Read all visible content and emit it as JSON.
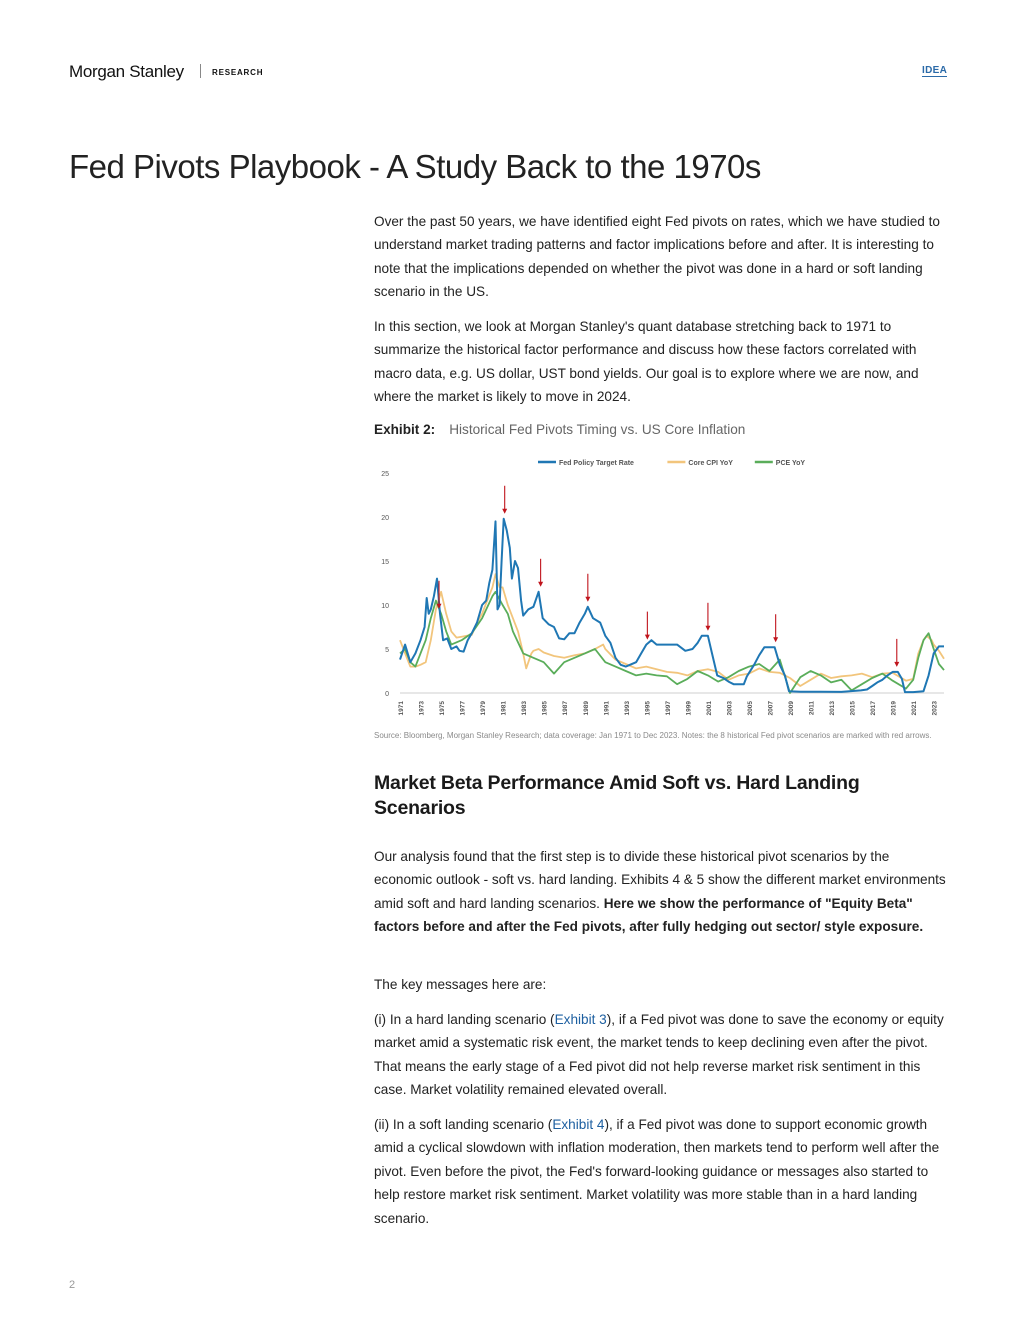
{
  "header": {
    "logo": "Morgan Stanley",
    "section": "RESEARCH",
    "badge": "IDEA"
  },
  "page_title": "Fed Pivots Playbook - A Study Back to the 1970s",
  "intro": {
    "p1": "Over the past 50 years, we have identified eight Fed pivots on rates, which we have studied to understand market trading patterns and factor implications before and after. It is interesting to note that the implications depended on whether the pivot was done in a hard or soft landing scenario in the US.",
    "p2": "In this section, we look at Morgan Stanley's quant database stretching back to 1971 to summarize the historical factor performance and discuss how these factors correlated with macro data, e.g. US dollar, UST bond yields. Our goal is to explore where we are now, and where the market is likely to move in 2024."
  },
  "exhibit": {
    "number": "Exhibit 2:",
    "title": "Historical Fed Pivots Timing vs. US Core Inflation",
    "source": "Source: Bloomberg, Morgan Stanley Research; data coverage: Jan 1971 to Dec 2023. Notes: the 8 historical Fed pivot scenarios are marked with red arrows."
  },
  "chart_data": {
    "type": "line",
    "title": "",
    "xlabel": "",
    "ylabel": "",
    "ylim": [
      0,
      25
    ],
    "xlim": [
      1971,
      2024
    ],
    "yticks": [
      "0",
      "5",
      "10",
      "15",
      "20",
      "25"
    ],
    "xticks": [
      "1971",
      "1973",
      "1975",
      "1977",
      "1979",
      "1981",
      "1983",
      "1985",
      "1987",
      "1989",
      "1991",
      "1993",
      "1995",
      "1997",
      "1999",
      "2001",
      "2003",
      "2005",
      "2007",
      "2009",
      "2011",
      "2013",
      "2015",
      "2017",
      "2019",
      "2021",
      "2023"
    ],
    "grid": false,
    "legend_position": "top-center",
    "series": [
      {
        "name": "Fed Policy Target Rate",
        "color": "#1f77b4",
        "points": [
          [
            1971,
            3.8
          ],
          [
            1971.5,
            5.5
          ],
          [
            1972,
            3.5
          ],
          [
            1972.5,
            4.5
          ],
          [
            1973,
            6.0
          ],
          [
            1973.4,
            7.5
          ],
          [
            1973.6,
            10.8
          ],
          [
            1973.8,
            9.0
          ],
          [
            1974,
            9.5
          ],
          [
            1974.3,
            11.0
          ],
          [
            1974.6,
            13.0
          ],
          [
            1974.9,
            9.0
          ],
          [
            1975.2,
            6.0
          ],
          [
            1975.6,
            6.2
          ],
          [
            1976,
            5.0
          ],
          [
            1976.5,
            5.3
          ],
          [
            1976.8,
            4.8
          ],
          [
            1977.2,
            4.7
          ],
          [
            1977.6,
            6.0
          ],
          [
            1978,
            6.8
          ],
          [
            1978.5,
            8.0
          ],
          [
            1979,
            10.0
          ],
          [
            1979.4,
            10.5
          ],
          [
            1979.7,
            12.5
          ],
          [
            1980,
            14.0
          ],
          [
            1980.3,
            19.5
          ],
          [
            1980.5,
            9.5
          ],
          [
            1980.7,
            10.0
          ],
          [
            1980.9,
            15.0
          ],
          [
            1981.1,
            19.8
          ],
          [
            1981.4,
            18.5
          ],
          [
            1981.7,
            16.5
          ],
          [
            1981.9,
            13.0
          ],
          [
            1982.2,
            15.0
          ],
          [
            1982.5,
            14.2
          ],
          [
            1982.8,
            10.5
          ],
          [
            1983,
            8.8
          ],
          [
            1983.5,
            9.5
          ],
          [
            1984,
            9.8
          ],
          [
            1984.5,
            11.5
          ],
          [
            1984.9,
            8.5
          ],
          [
            1985.5,
            7.8
          ],
          [
            1986,
            7.5
          ],
          [
            1986.5,
            6.2
          ],
          [
            1987,
            6.1
          ],
          [
            1987.5,
            6.8
          ],
          [
            1988,
            6.8
          ],
          [
            1988.5,
            8.0
          ],
          [
            1989,
            9.0
          ],
          [
            1989.3,
            9.8
          ],
          [
            1989.8,
            8.5
          ],
          [
            1990.5,
            8.0
          ],
          [
            1991,
            6.5
          ],
          [
            1991.5,
            5.7
          ],
          [
            1992,
            4.0
          ],
          [
            1992.5,
            3.2
          ],
          [
            1993,
            3.0
          ],
          [
            1994,
            3.5
          ],
          [
            1994.5,
            4.5
          ],
          [
            1995,
            5.5
          ],
          [
            1995.5,
            6.0
          ],
          [
            1996,
            5.5
          ],
          [
            1997,
            5.5
          ],
          [
            1998,
            5.5
          ],
          [
            1998.8,
            4.8
          ],
          [
            1999.5,
            5.0
          ],
          [
            2000,
            5.7
          ],
          [
            2000.4,
            6.5
          ],
          [
            2001,
            6.5
          ],
          [
            2001.4,
            4.5
          ],
          [
            2001.9,
            2.0
          ],
          [
            2002.5,
            1.7
          ],
          [
            2003,
            1.3
          ],
          [
            2003.5,
            1.0
          ],
          [
            2004.5,
            1.0
          ],
          [
            2004.8,
            1.9
          ],
          [
            2005.5,
            3.2
          ],
          [
            2006,
            4.3
          ],
          [
            2006.5,
            5.2
          ],
          [
            2007.5,
            5.2
          ],
          [
            2008,
            3.2
          ],
          [
            2008.5,
            2.0
          ],
          [
            2008.9,
            0.2
          ],
          [
            2010,
            0.15
          ],
          [
            2012,
            0.15
          ],
          [
            2014,
            0.12
          ],
          [
            2015.9,
            0.3
          ],
          [
            2016.5,
            0.4
          ],
          [
            2017,
            0.8
          ],
          [
            2017.5,
            1.2
          ],
          [
            2018,
            1.5
          ],
          [
            2018.5,
            2.0
          ],
          [
            2019,
            2.4
          ],
          [
            2019.5,
            2.4
          ],
          [
            2019.9,
            1.6
          ],
          [
            2020.2,
            0.1
          ],
          [
            2021,
            0.1
          ],
          [
            2022,
            0.2
          ],
          [
            2022.5,
            2.0
          ],
          [
            2023,
            4.5
          ],
          [
            2023.5,
            5.3
          ],
          [
            2024,
            5.3
          ]
        ]
      },
      {
        "name": "Core CPI YoY",
        "color": "#f2c57c",
        "points": [
          [
            1971,
            6.0
          ],
          [
            1971.5,
            4.5
          ],
          [
            1972,
            3.0
          ],
          [
            1972.5,
            3.0
          ],
          [
            1973,
            3.2
          ],
          [
            1973.5,
            3.5
          ],
          [
            1974,
            6.0
          ],
          [
            1974.5,
            9.5
          ],
          [
            1975,
            11.5
          ],
          [
            1975.5,
            9.0
          ],
          [
            1976,
            7.0
          ],
          [
            1976.5,
            6.3
          ],
          [
            1977,
            6.4
          ],
          [
            1977.5,
            6.5
          ],
          [
            1978,
            6.6
          ],
          [
            1978.5,
            8.0
          ],
          [
            1979,
            9.0
          ],
          [
            1979.5,
            10.5
          ],
          [
            1980,
            12.0
          ],
          [
            1980.3,
            13.5
          ],
          [
            1980.7,
            12.0
          ],
          [
            1981,
            12.0
          ],
          [
            1981.5,
            10.0
          ],
          [
            1982,
            8.5
          ],
          [
            1982.5,
            7.0
          ],
          [
            1983,
            4.5
          ],
          [
            1983.3,
            2.8
          ],
          [
            1983.8,
            4.5
          ],
          [
            1984,
            4.8
          ],
          [
            1984.5,
            5.0
          ],
          [
            1985,
            4.6
          ],
          [
            1986,
            4.2
          ],
          [
            1987,
            4.0
          ],
          [
            1988,
            4.3
          ],
          [
            1989,
            4.5
          ],
          [
            1990,
            5.0
          ],
          [
            1990.8,
            5.5
          ],
          [
            1991,
            5.0
          ],
          [
            1992,
            3.8
          ],
          [
            1993,
            3.3
          ],
          [
            1994,
            2.8
          ],
          [
            1995,
            3.0
          ],
          [
            1996,
            2.7
          ],
          [
            1997,
            2.4
          ],
          [
            1998,
            2.3
          ],
          [
            1999,
            2.0
          ],
          [
            2000,
            2.5
          ],
          [
            2001,
            2.7
          ],
          [
            2002,
            2.4
          ],
          [
            2003,
            1.5
          ],
          [
            2004,
            2.0
          ],
          [
            2005,
            2.2
          ],
          [
            2006,
            2.8
          ],
          [
            2007,
            2.4
          ],
          [
            2008,
            2.3
          ],
          [
            2009,
            1.7
          ],
          [
            2010,
            0.8
          ],
          [
            2011,
            1.5
          ],
          [
            2012,
            2.2
          ],
          [
            2013,
            1.7
          ],
          [
            2014,
            1.9
          ],
          [
            2015,
            2.0
          ],
          [
            2016,
            2.2
          ],
          [
            2017,
            1.8
          ],
          [
            2018,
            2.2
          ],
          [
            2019,
            2.3
          ],
          [
            2020.3,
            1.4
          ],
          [
            2021,
            1.6
          ],
          [
            2021.5,
            4.5
          ],
          [
            2022,
            6.0
          ],
          [
            2022.3,
            6.5
          ],
          [
            2022.8,
            6.0
          ],
          [
            2023,
            5.5
          ],
          [
            2023.5,
            4.8
          ],
          [
            2024,
            3.9
          ]
        ]
      },
      {
        "name": "PCE YoY",
        "color": "#5aad5a",
        "points": [
          [
            1971,
            4.5
          ],
          [
            1971.5,
            5.0
          ],
          [
            1972,
            3.5
          ],
          [
            1972.5,
            3.0
          ],
          [
            1973,
            4.5
          ],
          [
            1973.5,
            6.0
          ],
          [
            1974,
            8.5
          ],
          [
            1974.5,
            10.5
          ],
          [
            1975,
            9.0
          ],
          [
            1975.5,
            7.0
          ],
          [
            1976,
            5.5
          ],
          [
            1977,
            6.0
          ],
          [
            1978,
            6.8
          ],
          [
            1979,
            8.5
          ],
          [
            1980,
            11.0
          ],
          [
            1980.3,
            11.5
          ],
          [
            1981,
            10.0
          ],
          [
            1981.5,
            9.0
          ],
          [
            1982,
            7.0
          ],
          [
            1983,
            4.5
          ],
          [
            1984,
            4.0
          ],
          [
            1985,
            3.5
          ],
          [
            1986,
            2.2
          ],
          [
            1987,
            3.5
          ],
          [
            1988,
            4.0
          ],
          [
            1989,
            4.5
          ],
          [
            1990,
            5.0
          ],
          [
            1991,
            3.5
          ],
          [
            1992,
            3.0
          ],
          [
            1993,
            2.5
          ],
          [
            1994,
            2.0
          ],
          [
            1995,
            2.2
          ],
          [
            1996,
            2.0
          ],
          [
            1997,
            1.9
          ],
          [
            1998,
            1.0
          ],
          [
            1999,
            1.6
          ],
          [
            2000,
            2.5
          ],
          [
            2001,
            2.0
          ],
          [
            2002,
            1.3
          ],
          [
            2003,
            1.8
          ],
          [
            2004,
            2.5
          ],
          [
            2005,
            3.0
          ],
          [
            2006,
            3.3
          ],
          [
            2007,
            2.5
          ],
          [
            2008,
            3.8
          ],
          [
            2009,
            0.0
          ],
          [
            2010,
            1.8
          ],
          [
            2011,
            2.5
          ],
          [
            2012,
            2.0
          ],
          [
            2013,
            1.2
          ],
          [
            2014,
            1.5
          ],
          [
            2015,
            0.3
          ],
          [
            2016,
            1.0
          ],
          [
            2017,
            1.7
          ],
          [
            2018,
            2.2
          ],
          [
            2019,
            1.4
          ],
          [
            2020.3,
            0.5
          ],
          [
            2021,
            1.5
          ],
          [
            2021.5,
            4.0
          ],
          [
            2022,
            6.0
          ],
          [
            2022.5,
            6.8
          ],
          [
            2023,
            5.0
          ],
          [
            2023.5,
            3.3
          ],
          [
            2024,
            2.6
          ]
        ]
      }
    ],
    "pivot_arrows": [
      1974.8,
      1981.2,
      1984.7,
      1989.3,
      1995.1,
      2001.0,
      2007.6,
      2019.4
    ]
  },
  "section2": {
    "heading": "Market Beta Performance Amid Soft vs. Hard Landing Scenarios",
    "p1_normal": "Our analysis found that the first step is to divide these historical pivot scenarios by the economic outlook - soft vs. hard landing. Exhibits 4 & 5 show the different market environments amid soft and hard landing scenarios. ",
    "p1_bold": "Here we show the performance of \"Equity Beta\" factors before and after the Fed pivots, after fully hedging out sector/ style exposure.",
    "p2": "The key messages here are:",
    "p3_a": "(i) In a hard landing scenario (",
    "p3_link": "Exhibit 3",
    "p3_b": "), if a Fed pivot was done to save the economy or equity market amid a systematic risk event, the market tends to keep declining even after the pivot. That means the early stage of a Fed pivot did not help reverse market risk sentiment in this case. Market volatility remained elevated overall.",
    "p4_a": "(ii) In a soft landing scenario (",
    "p4_link": "Exhibit 4",
    "p4_b": "), if a Fed pivot was done to support economic growth amid a cyclical slowdown with inflation moderation, then markets tend to perform well after the pivot. Even before the pivot, the Fed's forward-looking guidance or messages also started to help restore market risk sentiment. Market volatility was more stable than in a hard landing scenario."
  },
  "footer": {
    "page_number": "2"
  }
}
